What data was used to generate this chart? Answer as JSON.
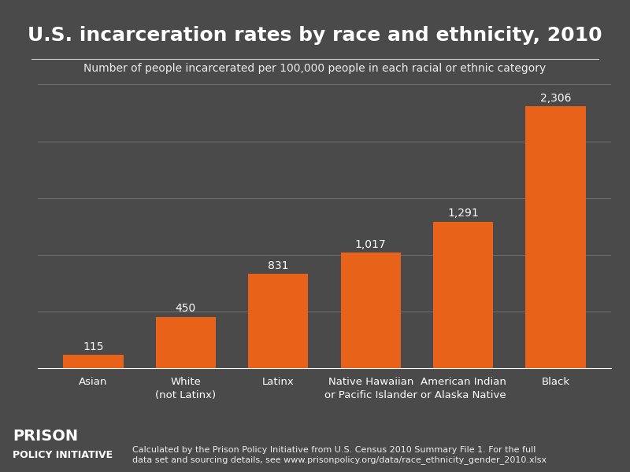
{
  "title": "U.S. incarceration rates by race and ethnicity, 2010",
  "subtitle": "Number of people incarcerated per 100,000 people in each racial or ethnic category",
  "categories": [
    "Asian",
    "White\n(not Latinx)",
    "Latinx",
    "Native Hawaiian\nor Pacific Islander",
    "American Indian\nor Alaska Native",
    "Black"
  ],
  "values": [
    115,
    450,
    831,
    1017,
    1291,
    2306
  ],
  "bar_color": "#E8621A",
  "background_color": "#4a4a4a",
  "text_color": "#FFFFFF",
  "grid_color": "#777777",
  "ylim": [
    0,
    2600
  ],
  "title_fontsize": 18,
  "subtitle_fontsize": 10,
  "label_fontsize": 9.5,
  "value_fontsize": 10,
  "footer_text_left_line1": "PRISON",
  "footer_text_left_line2": "POLICY INITIATIVE",
  "footer_text_right": "Calculated by the Prison Policy Initiative from U.S. Census 2010 Summary File 1. For the full\ndata set and sourcing details, see www.prisonpolicy.org/data/race_ethnicity_gender_2010.xlsx",
  "footer_fontsize": 8,
  "footer_logo_fontsize_large": 14,
  "footer_logo_fontsize_small": 9,
  "grid_values": [
    500,
    1000,
    1500,
    2000,
    2500
  ]
}
